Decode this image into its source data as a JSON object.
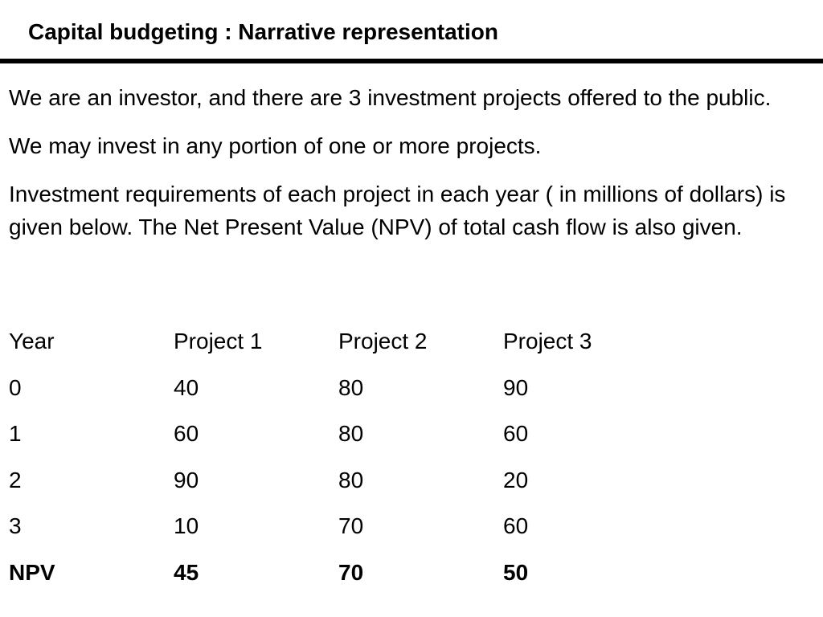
{
  "title": "Capital budgeting : Narrative representation",
  "paragraphs": [
    "We are an investor, and there are 3 investment projects offered to the public.",
    "We may invest in any portion of one or more projects.",
    "Investment requirements of each project in each year ( in millions of dollars) is given below. The Net Present Value (NPV) of total cash flow is also given."
  ],
  "table": {
    "headers": [
      "Year",
      "Project 1",
      "Project 2",
      "Project 3"
    ],
    "rows": [
      [
        "0",
        "40",
        "80",
        "90"
      ],
      [
        "1",
        "60",
        "80",
        "60"
      ],
      [
        "2",
        "90",
        "80",
        "20"
      ],
      [
        "3",
        "10",
        "70",
        "60"
      ]
    ],
    "npv_row": [
      "NPV",
      "45",
      "70",
      "50"
    ]
  }
}
